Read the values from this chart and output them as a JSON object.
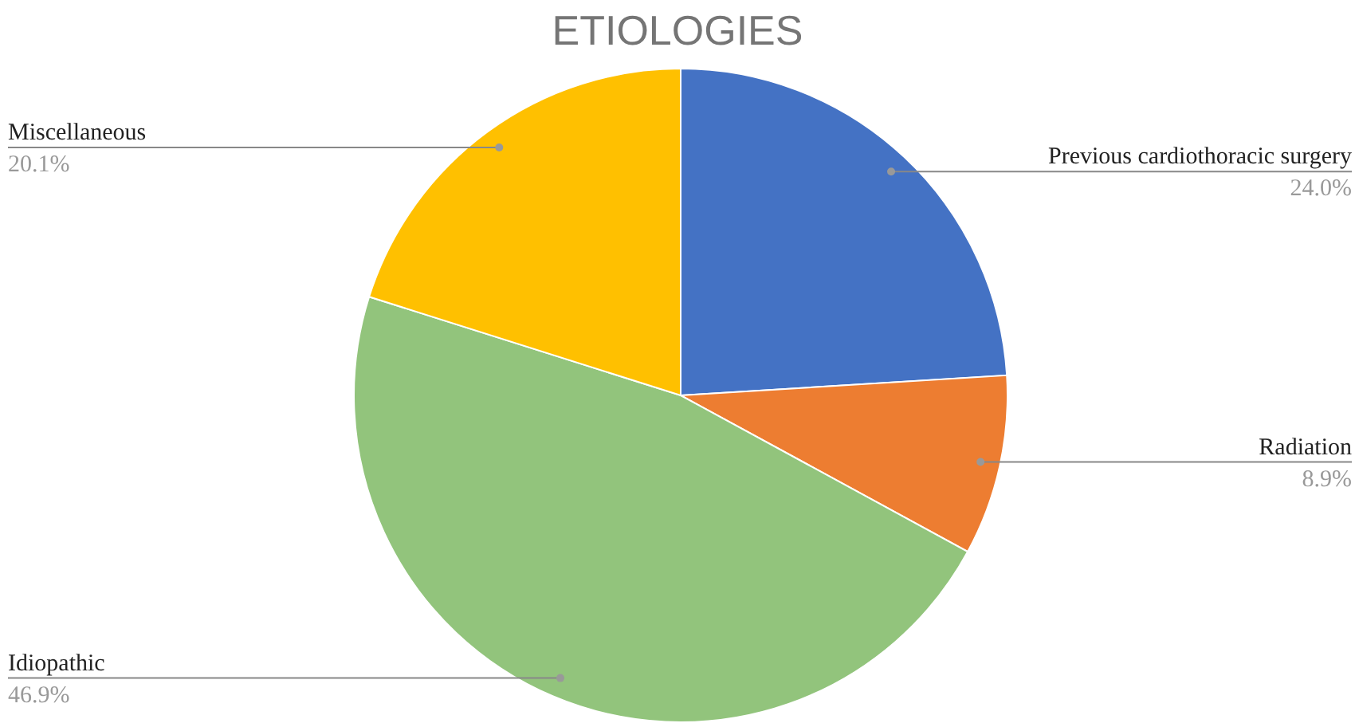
{
  "chart_data": {
    "type": "pie",
    "title": "ETIOLOGIES",
    "categories": [
      "Previous cardiothoracic surgery",
      "Radiation",
      "Idiopathic",
      "Miscellaneous"
    ],
    "values": [
      24.0,
      8.9,
      46.9,
      20.1
    ],
    "colors": [
      "#4472c4",
      "#ed7d31",
      "#92c47c",
      "#ffc000"
    ],
    "value_labels": [
      "24.0%",
      "8.9%",
      "46.9%",
      "20.1%"
    ]
  }
}
